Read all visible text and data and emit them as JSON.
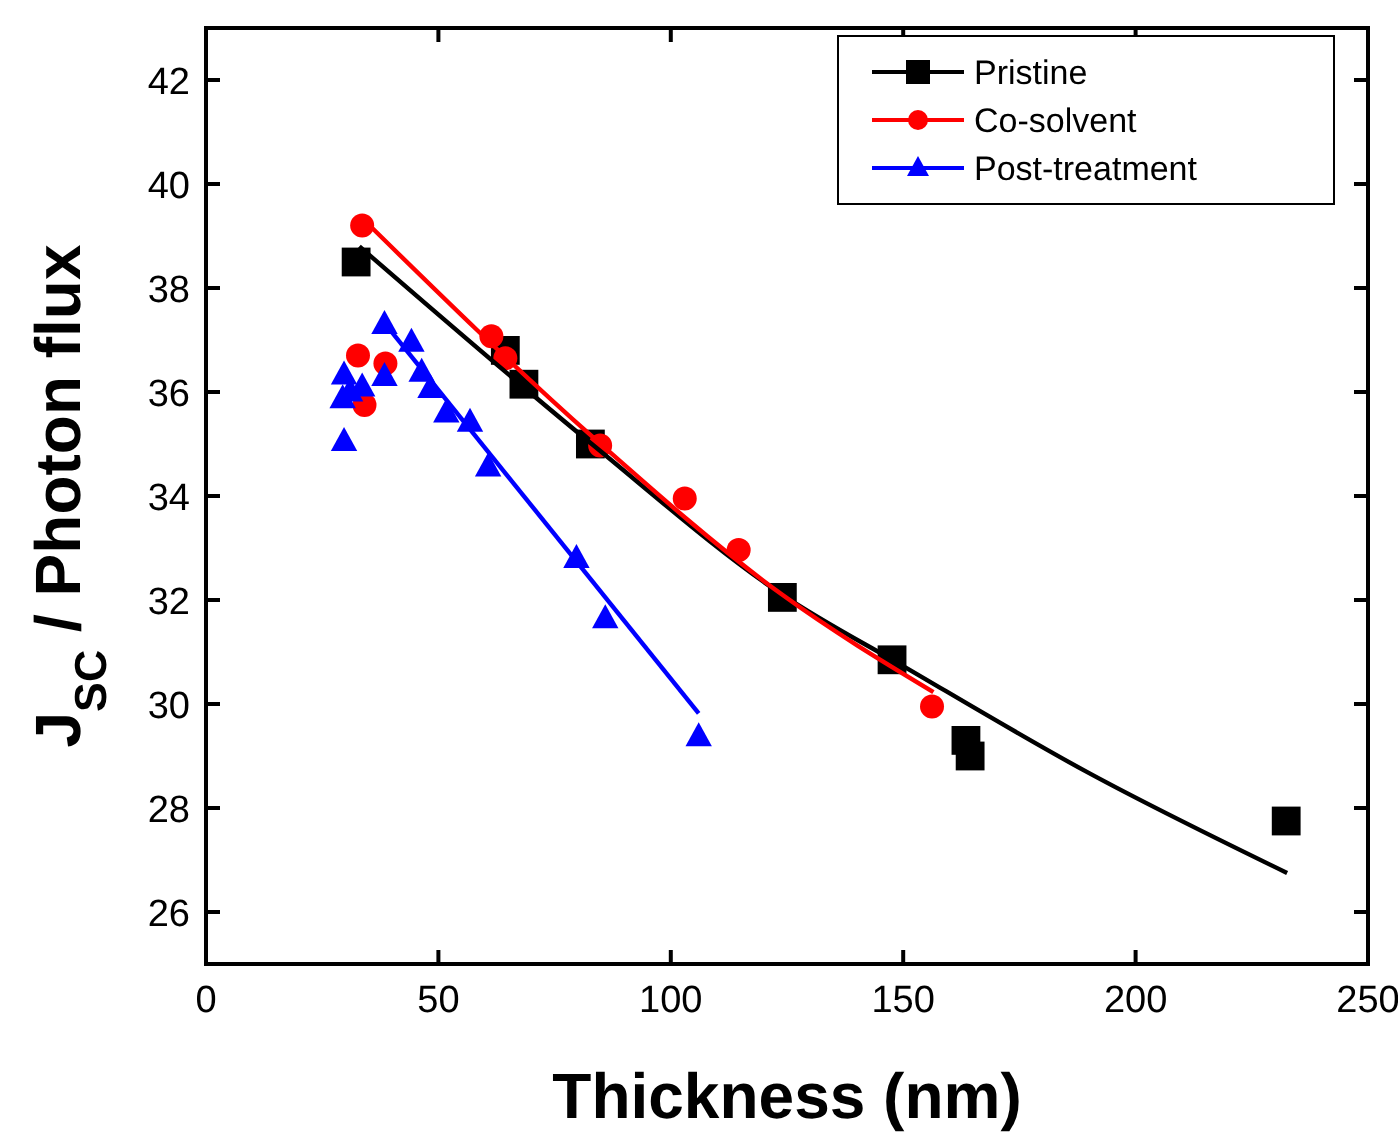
{
  "chart_data": {
    "type": "scatter",
    "xlabel": "Thickness (nm)",
    "ylabel": "J$_{SC}$ / Photon flux",
    "xlim": [
      0,
      250
    ],
    "ylim": [
      25,
      43
    ],
    "xticks": [
      0,
      50,
      100,
      150,
      200,
      250
    ],
    "yticks": [
      26,
      28,
      30,
      32,
      34,
      36,
      38,
      40,
      42
    ],
    "legend": "top right",
    "grid": false,
    "series": [
      {
        "name": "Pristine",
        "color": "#000000",
        "marker": "square",
        "x": [
          32.3,
          64.4,
          68.4,
          82.7,
          124,
          147.6,
          163.5,
          164.4,
          232.4
        ],
        "values": [
          38.5,
          36.8,
          36.15,
          35.0,
          32.05,
          30.85,
          29.3,
          29.0,
          27.75
        ]
      },
      {
        "name": "Co-solvent",
        "color": "#ff0000",
        "marker": "circle",
        "x": [
          33.6,
          32.7,
          34.1,
          38.6,
          61.4,
          64.4,
          84.8,
          103,
          114.6,
          156.2
        ],
        "values": [
          39.2,
          36.7,
          35.75,
          36.55,
          37.07,
          36.65,
          34.97,
          33.95,
          32.96,
          29.95
        ]
      },
      {
        "name": "Post-treatment",
        "color": "#0000ff",
        "marker": "triangle",
        "x": [
          29.7,
          29.4,
          29.7,
          31,
          33.6,
          38.4,
          38.4,
          44.2,
          46.4,
          48.3,
          51.7,
          56.8,
          60.7,
          79.7,
          85.9,
          106
        ],
        "values": [
          36.33,
          35.87,
          35.05,
          36.0,
          36.1,
          36.3,
          37.3,
          36.96,
          36.38,
          36.07,
          35.6,
          35.42,
          34.56,
          32.8,
          31.64,
          29.37
        ]
      },
      {
        "type": "line",
        "color": "#000000",
        "x": [
          33,
          83,
          124,
          150,
          190,
          232.6
        ],
        "values": [
          38.8,
          35.0,
          32.1,
          30.73,
          28.67,
          26.75
        ]
      },
      {
        "type": "line",
        "color": "#ff0000",
        "x": [
          33.5,
          83,
          124,
          156.5
        ],
        "values": [
          39.35,
          35.15,
          32.1,
          30.23
        ]
      },
      {
        "type": "line",
        "color": "#0000ff",
        "x": [
          38.2,
          106
        ],
        "values": [
          37.35,
          29.82
        ]
      }
    ]
  }
}
